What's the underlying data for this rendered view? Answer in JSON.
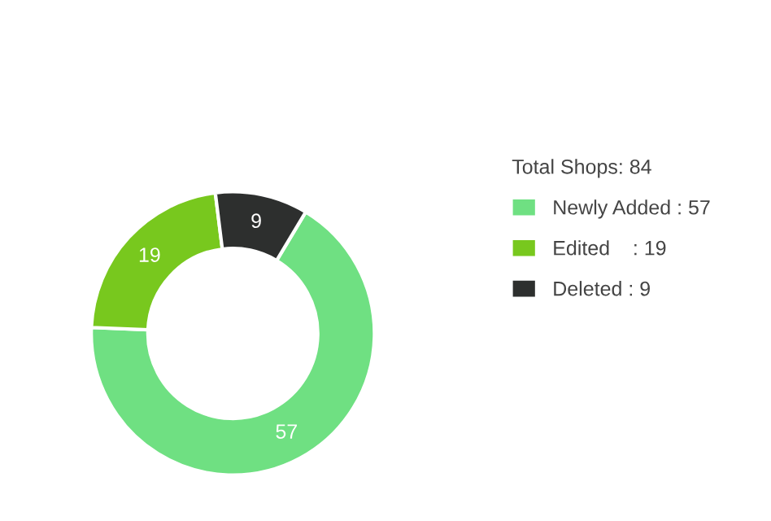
{
  "chart_data": {
    "type": "donut",
    "legend_title": "Total Shops: 84",
    "categories": [
      "Newly Added : 57",
      "Edited    : 19",
      "Deleted : 9"
    ],
    "values": [
      57,
      19,
      9
    ],
    "colors": [
      "#6fe082",
      "#78c81e",
      "#2d2f2e"
    ],
    "data_labels": true,
    "legend": "right"
  }
}
